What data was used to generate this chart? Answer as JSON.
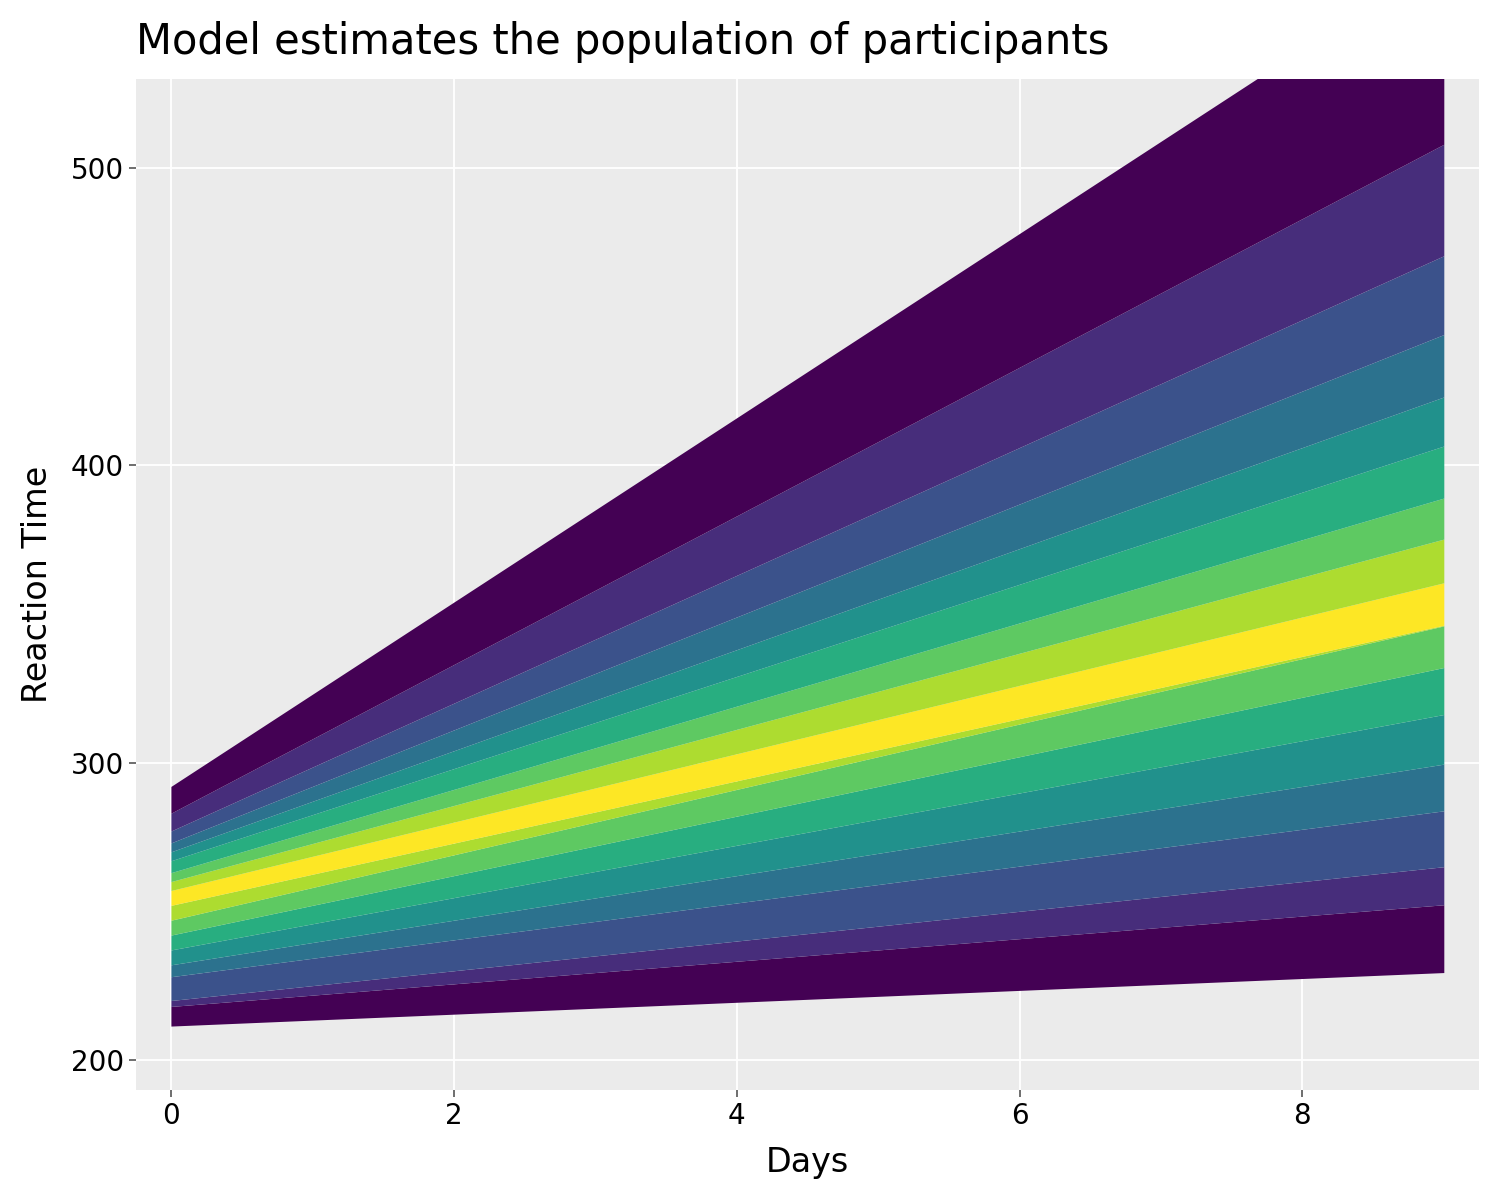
{
  "title": "Model estimates the population of participants",
  "xlabel": "Days",
  "ylabel": "Reaction Time",
  "xlim": [
    -0.25,
    9.25
  ],
  "ylim": [
    190,
    530
  ],
  "xticks": [
    0,
    2,
    4,
    6,
    8
  ],
  "yticks": [
    200,
    300,
    400,
    500
  ],
  "bg_color": "#EBEBEB",
  "cmap": "viridis",
  "title_fontsize": 30,
  "axis_label_fontsize": 24,
  "tick_fontsize": 20,
  "participant_params": [
    [
      211.4,
      2.0
    ],
    [
      218.0,
      3.8
    ],
    [
      220.0,
      5.0
    ],
    [
      228.0,
      6.2
    ],
    [
      232.0,
      7.5
    ],
    [
      237.0,
      8.8
    ],
    [
      242.0,
      10.0
    ],
    [
      247.0,
      11.0
    ],
    [
      252.0,
      10.47
    ],
    [
      257.0,
      11.5
    ],
    [
      260.0,
      12.8
    ],
    [
      263.0,
      14.0
    ],
    [
      267.0,
      15.5
    ],
    [
      270.0,
      17.0
    ],
    [
      273.0,
      19.0
    ],
    [
      277.0,
      21.5
    ],
    [
      283.0,
      25.0
    ],
    [
      292.0,
      31.0
    ]
  ]
}
